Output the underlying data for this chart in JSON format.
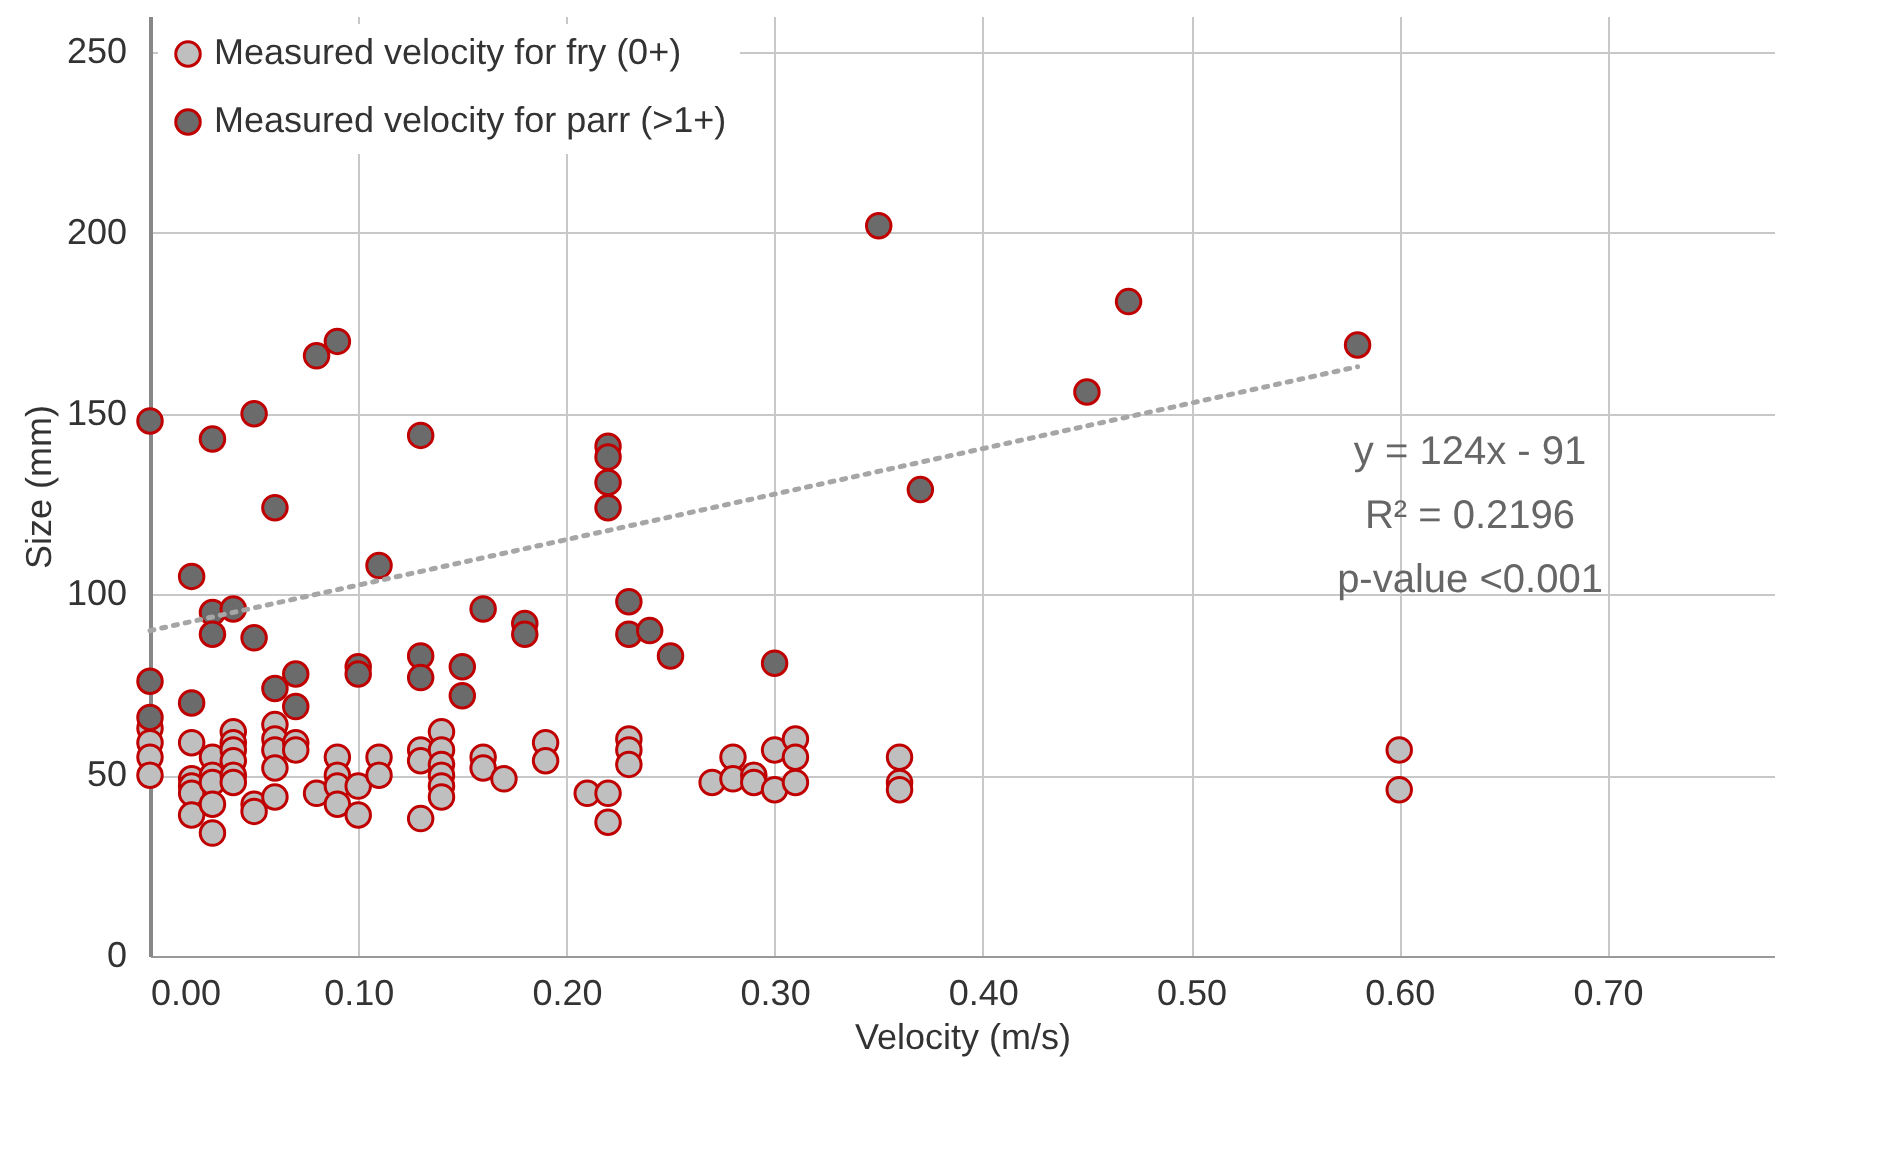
{
  "chart_data": {
    "type": "scatter",
    "xlabel": "Velocity (m/s)",
    "ylabel": "Size (mm)",
    "xlim": [
      0,
      0.78
    ],
    "xticks": [
      {
        "value": 0,
        "label": "0.00"
      },
      {
        "value": 0.1,
        "label": "0.10"
      },
      {
        "value": 0.2,
        "label": "0.20"
      },
      {
        "value": 0.3,
        "label": "0.30"
      },
      {
        "value": 0.4,
        "label": "0.40"
      },
      {
        "value": 0.5,
        "label": "0.50"
      },
      {
        "value": 0.6,
        "label": "0.60"
      },
      {
        "value": 0.7,
        "label": "0.70"
      }
    ],
    "ylim": [
      0,
      260
    ],
    "yticks": [
      0,
      50,
      100,
      150,
      200,
      250
    ],
    "grid": true,
    "legend": "top left",
    "marker": "circle",
    "annotations": [
      "y = 124x - 91",
      "R² = 0.2196",
      "p-value <0.001"
    ],
    "series": [
      {
        "name": "Measured velocity for fry (0+)",
        "color": "#bfbfbf",
        "x": [
          0,
          0,
          0,
          0,
          0.02,
          0.02,
          0.02,
          0.02,
          0.02,
          0.03,
          0.03,
          0.03,
          0.03,
          0.03,
          0.04,
          0.04,
          0.04,
          0.04,
          0.04,
          0.04,
          0.05,
          0.05,
          0.06,
          0.06,
          0.06,
          0.06,
          0.06,
          0.07,
          0.07,
          0.08,
          0.09,
          0.09,
          0.09,
          0.09,
          0.1,
          0.1,
          0.11,
          0.11,
          0.13,
          0.13,
          0.13,
          0.14,
          0.14,
          0.14,
          0.14,
          0.14,
          0.14,
          0.16,
          0.16,
          0.17,
          0.19,
          0.19,
          0.21,
          0.22,
          0.22,
          0.23,
          0.23,
          0.23,
          0.27,
          0.28,
          0.28,
          0.29,
          0.29,
          0.3,
          0.3,
          0.31,
          0.31,
          0.31,
          0.36,
          0.36,
          0.36,
          0.6,
          0.6
        ],
        "values": [
          63,
          59,
          55,
          50,
          59,
          49,
          47,
          45,
          39,
          55,
          50,
          48,
          42,
          34,
          62,
          59,
          57,
          54,
          50,
          48,
          42,
          40,
          64,
          60,
          57,
          52,
          44,
          59,
          57,
          45,
          55,
          50,
          47,
          42,
          47,
          39,
          55,
          50,
          57,
          54,
          38,
          62,
          57,
          53,
          50,
          47,
          44,
          55,
          52,
          49,
          59,
          54,
          45,
          45,
          37,
          60,
          57,
          53,
          48,
          55,
          49,
          50,
          48,
          57,
          46,
          60,
          55,
          48,
          55,
          48,
          46,
          57,
          46
        ]
      },
      {
        "name": "Measured velocity for parr (>1+)",
        "color": "#6b6b6b",
        "x": [
          0,
          0,
          0,
          0.02,
          0.02,
          0.03,
          0.03,
          0.03,
          0.04,
          0.05,
          0.05,
          0.06,
          0.06,
          0.07,
          0.07,
          0.08,
          0.09,
          0.11,
          0.1,
          0.1,
          0.13,
          0.13,
          0.13,
          0.15,
          0.15,
          0.16,
          0.18,
          0.18,
          0.22,
          0.22,
          0.22,
          0.22,
          0.23,
          0.23,
          0.24,
          0.25,
          0.3,
          0.35,
          0.37,
          0.45,
          0.47,
          0.58
        ],
        "values": [
          148,
          76,
          66,
          105,
          70,
          143,
          95,
          89,
          96,
          150,
          88,
          124,
          74,
          78,
          69,
          166,
          170,
          108,
          80,
          78,
          144,
          83,
          77,
          80,
          72,
          96,
          92,
          89,
          141,
          138,
          131,
          124,
          98,
          89,
          90,
          83,
          81,
          202,
          129,
          156,
          181,
          169
        ]
      },
      {
        "type": "line",
        "color": "#a6a6a6",
        "line_style": "dotted",
        "marker": "none",
        "x": [
          0,
          0.58
        ],
        "values": [
          90,
          163
        ]
      }
    ]
  }
}
